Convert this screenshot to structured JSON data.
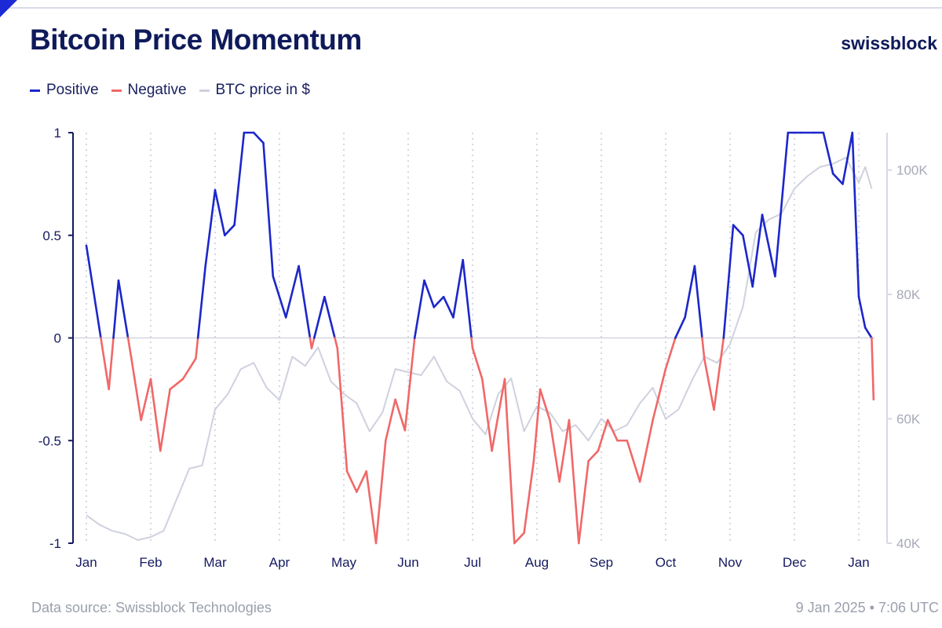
{
  "header": {
    "title": "Bitcoin Price Momentum",
    "brand": "swissblock"
  },
  "legend": {
    "positive": "Positive",
    "negative": "Negative",
    "btc": "BTC price in $"
  },
  "footer": {
    "source": "Data source: Swissblock Technologies",
    "timestamp": "9 Jan 2025 • 7:06 UTC"
  },
  "colors": {
    "positive": "#1c27c9",
    "negative": "#f06868",
    "btc": "#cfd1de",
    "axis": "#141a60",
    "right_axis": "#a7aab8",
    "grid": "#c9cbd6",
    "zero": "#cfd1dc"
  },
  "chart_data": {
    "type": "line",
    "title": "Bitcoin Price Momentum",
    "x_ticks": [
      "Jan",
      "Feb",
      "Mar",
      "Apr",
      "May",
      "Jun",
      "Jul",
      "Aug",
      "Sep",
      "Oct",
      "Nov",
      "Dec",
      "Jan"
    ],
    "y_left": {
      "ticks": [
        "1",
        "0.5",
        "0",
        "-0.5",
        "-1"
      ],
      "range": [
        -1,
        1
      ]
    },
    "y_right": {
      "ticks": [
        "100K",
        "80K",
        "60K",
        "40K"
      ],
      "range": [
        40000,
        106000
      ]
    },
    "grid": "vertical dotted at month starts",
    "legend_position": "top-left",
    "series": [
      {
        "name": "Positive / Negative",
        "note_color_rule": "momentum",
        "x": [
          0.0,
          0.2,
          0.35,
          0.5,
          0.7,
          0.85,
          1.0,
          1.15,
          1.3,
          1.5,
          1.7,
          1.85,
          2.0,
          2.15,
          2.3,
          2.45,
          2.6,
          2.75,
          2.9,
          3.1,
          3.3,
          3.5,
          3.7,
          3.9,
          4.05,
          4.2,
          4.35,
          4.5,
          4.65,
          4.8,
          4.95,
          5.1,
          5.25,
          5.4,
          5.55,
          5.7,
          5.85,
          6.0,
          6.15,
          6.3,
          6.5,
          6.65,
          6.8,
          6.95,
          7.05,
          7.2,
          7.35,
          7.5,
          7.65,
          7.8,
          7.95,
          8.1,
          8.25,
          8.4,
          8.6,
          8.8,
          9.0,
          9.15,
          9.3,
          9.45,
          9.6,
          9.75,
          9.9,
          10.05,
          10.2,
          10.35,
          10.5,
          10.7,
          10.9,
          11.1,
          11.3,
          11.45,
          11.6,
          11.75,
          11.9,
          12.0,
          12.1,
          12.2
        ],
        "y": [
          0.45,
          0.05,
          -0.25,
          0.28,
          -0.1,
          -0.4,
          -0.2,
          -0.55,
          -0.25,
          -0.2,
          -0.1,
          0.35,
          0.72,
          0.5,
          0.55,
          1.0,
          1.0,
          0.95,
          0.3,
          0.1,
          0.35,
          -0.05,
          0.2,
          -0.05,
          -0.65,
          -0.75,
          -0.65,
          -1.0,
          -0.5,
          -0.3,
          -0.45,
          0.0,
          0.28,
          0.15,
          0.2,
          0.1,
          0.38,
          -0.05,
          -0.2,
          -0.55,
          -0.2,
          -1.0,
          -0.95,
          -0.6,
          -0.25,
          -0.4,
          -0.7,
          -0.4,
          -1.0,
          -0.6,
          -0.55,
          -0.4,
          -0.5,
          -0.5,
          -0.7,
          -0.4,
          -0.15,
          0.0,
          0.1,
          0.35,
          -0.1,
          -0.35,
          0.0,
          0.55,
          0.5,
          0.25,
          0.6,
          0.3,
          1.0,
          1.0,
          1.0,
          1.0,
          0.8,
          0.75,
          1.0,
          0.2,
          0.05,
          0.0
        ],
        "extra_y_end": -0.3
      },
      {
        "name": "BTC price in $",
        "x": [
          0.0,
          0.2,
          0.4,
          0.6,
          0.8,
          1.0,
          1.2,
          1.4,
          1.6,
          1.8,
          2.0,
          2.2,
          2.4,
          2.6,
          2.8,
          3.0,
          3.2,
          3.4,
          3.6,
          3.8,
          4.0,
          4.2,
          4.4,
          4.6,
          4.8,
          5.0,
          5.2,
          5.4,
          5.6,
          5.8,
          6.0,
          6.2,
          6.4,
          6.6,
          6.8,
          7.0,
          7.2,
          7.4,
          7.6,
          7.8,
          8.0,
          8.2,
          8.4,
          8.6,
          8.8,
          9.0,
          9.2,
          9.4,
          9.6,
          9.8,
          10.0,
          10.2,
          10.4,
          10.6,
          10.8,
          11.0,
          11.2,
          11.4,
          11.6,
          11.8,
          12.0,
          12.1,
          12.2
        ],
        "y": [
          44500,
          43000,
          42000,
          41500,
          40500,
          41000,
          42000,
          47000,
          52000,
          52500,
          61500,
          64000,
          68000,
          69000,
          65000,
          63000,
          70000,
          68500,
          71500,
          66000,
          64000,
          62500,
          58000,
          61000,
          68000,
          67500,
          67000,
          70000,
          66000,
          64500,
          60000,
          57500,
          64000,
          66500,
          58000,
          62000,
          61000,
          58000,
          59000,
          56500,
          60000,
          58000,
          59000,
          62500,
          65000,
          60000,
          61500,
          66000,
          70000,
          69000,
          72000,
          78000,
          90000,
          92000,
          93000,
          97000,
          99000,
          100500,
          101000,
          102000,
          98000,
          100500,
          97000
        ]
      }
    ]
  }
}
